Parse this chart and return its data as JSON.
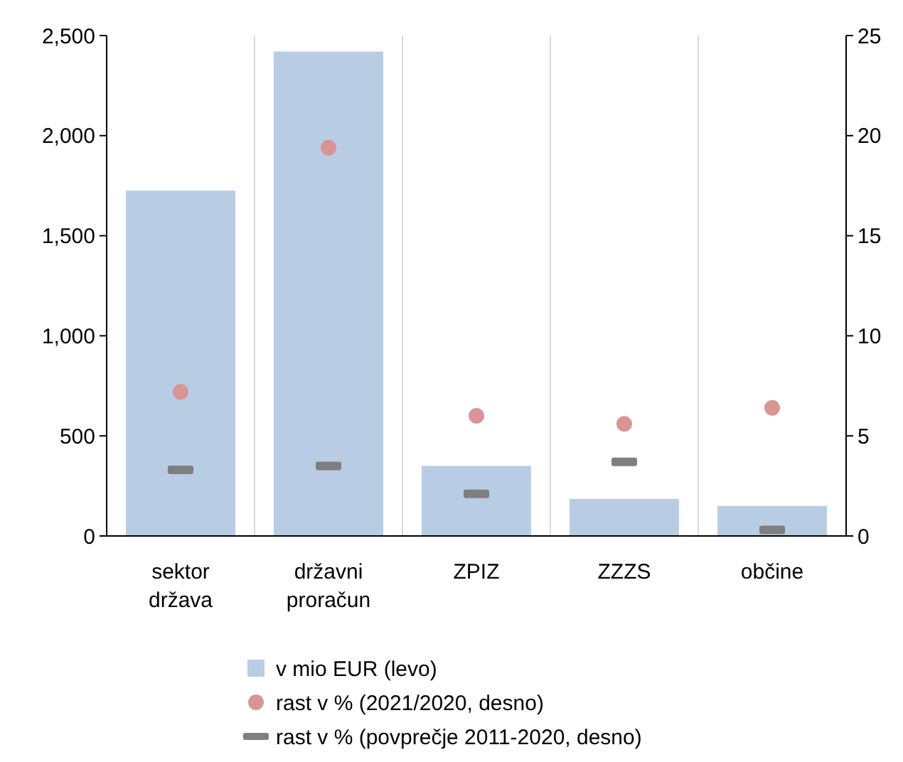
{
  "chart_data": {
    "type": "bar",
    "categories": [
      "sektor\ndržava",
      "državni\nproračun",
      "ZPIZ",
      "ZZZS",
      "občine"
    ],
    "series": [
      {
        "name": "v mio EUR (levo)",
        "color": "#b8cce4",
        "values": [
          1725,
          2420,
          350,
          185,
          150
        ]
      },
      {
        "name": "rast v % (2021/2020, desno)",
        "type": "scatter",
        "marker": "circle",
        "axis": "y2",
        "color": "#d99594",
        "values": [
          7.2,
          19.4,
          6.0,
          5.6,
          6.4
        ]
      },
      {
        "name": "rast v % (povprečje 2011-2020, desno)",
        "type": "scatter",
        "marker": "square",
        "axis": "y2",
        "color": "#7f7f7f",
        "values": [
          3.3,
          3.5,
          2.1,
          3.7,
          0.3
        ]
      }
    ],
    "ylim": [
      0,
      2500
    ],
    "yticks": [
      {
        "value": 0,
        "label": "0"
      },
      {
        "value": 500,
        "label": "500"
      },
      {
        "value": 1000,
        "label": "1,000"
      },
      {
        "value": 1500,
        "label": "1,500"
      },
      {
        "value": 2000,
        "label": "2,000"
      },
      {
        "value": 2500,
        "label": "2,500"
      }
    ],
    "y2lim": [
      0,
      25
    ],
    "y2ticks": [
      0,
      5,
      10,
      15,
      20,
      25
    ],
    "grid": "x",
    "legend": "bottom"
  }
}
